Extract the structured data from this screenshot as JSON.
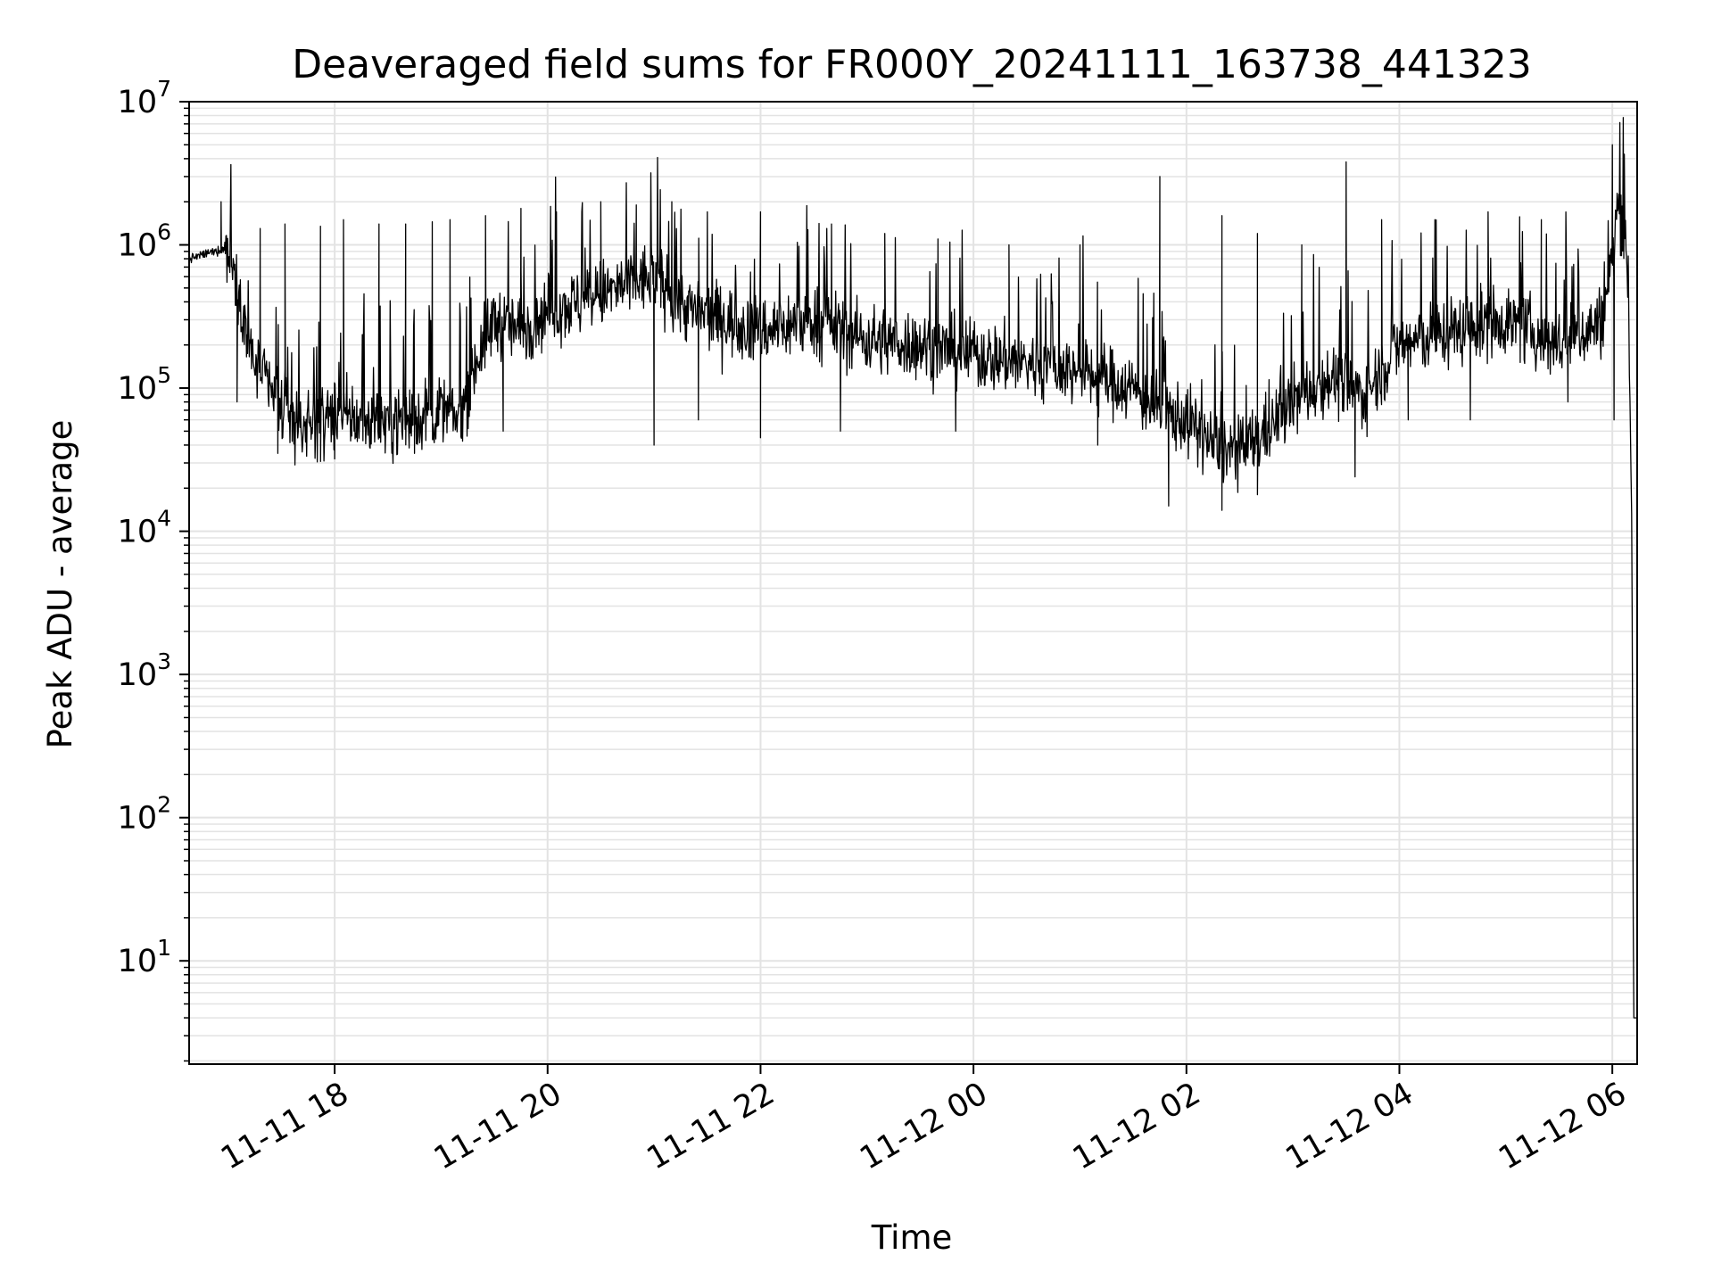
{
  "chart_data": {
    "type": "line",
    "title": "Deaveraged field sums for FR000Y_20241111_163738_441323",
    "xlabel": "Time",
    "ylabel": "Peak ADU - average",
    "y_scale": "log",
    "ylim": [
      1.9,
      10000000
    ],
    "xlim": [
      "2024-11-11 16:38",
      "2024-11-12 06:14"
    ],
    "grid": true,
    "legend": "none",
    "colors": {
      "line": "#000000",
      "grid": "#e3e3e3",
      "axes": "#000000"
    },
    "y_ticks": [
      {
        "base": "10",
        "exp": "1",
        "value": 10
      },
      {
        "base": "10",
        "exp": "2",
        "value": 100
      },
      {
        "base": "10",
        "exp": "3",
        "value": 1000
      },
      {
        "base": "10",
        "exp": "4",
        "value": 10000
      },
      {
        "base": "10",
        "exp": "5",
        "value": 100000
      },
      {
        "base": "10",
        "exp": "6",
        "value": 1000000
      },
      {
        "base": "10",
        "exp": "7",
        "value": 10000000
      }
    ],
    "x_ticks": [
      {
        "label": "11-11 18",
        "t": "2024-11-11 18:00"
      },
      {
        "label": "11-11 20",
        "t": "2024-11-11 20:00"
      },
      {
        "label": "11-11 22",
        "t": "2024-11-11 22:00"
      },
      {
        "label": "11-12 00",
        "t": "2024-11-12 00:00"
      },
      {
        "label": "11-12 02",
        "t": "2024-11-12 02:00"
      },
      {
        "label": "11-12 04",
        "t": "2024-11-12 04:00"
      },
      {
        "label": "11-12 06",
        "t": "2024-11-12 06:00"
      }
    ],
    "series": [
      {
        "x": [
          "2024-11-11 16:38",
          "2024-11-11 16:45",
          "2024-11-11 16:52",
          "2024-11-11 17:00",
          "2024-11-11 17:06",
          "2024-11-11 17:12",
          "2024-11-11 17:20",
          "2024-11-11 17:28",
          "2024-11-11 17:36",
          "2024-11-11 17:45",
          "2024-11-11 18:00",
          "2024-11-11 18:15",
          "2024-11-11 18:30",
          "2024-11-11 18:45",
          "2024-11-11 19:00",
          "2024-11-11 19:10",
          "2024-11-11 19:20",
          "2024-11-11 19:30",
          "2024-11-11 19:45",
          "2024-11-11 20:00",
          "2024-11-11 20:20",
          "2024-11-11 20:40",
          "2024-11-11 21:00",
          "2024-11-11 21:20",
          "2024-11-11 21:40",
          "2024-11-11 22:00",
          "2024-11-11 22:30",
          "2024-11-11 23:00",
          "2024-11-11 23:30",
          "2024-11-12 00:00",
          "2024-11-12 00:30",
          "2024-11-12 01:00",
          "2024-11-12 01:30",
          "2024-11-12 01:45",
          "2024-11-12 02:00",
          "2024-11-12 02:15",
          "2024-11-12 02:30",
          "2024-11-12 02:45",
          "2024-11-12 03:00",
          "2024-11-12 03:20",
          "2024-11-12 03:40",
          "2024-11-12 04:00",
          "2024-11-12 04:30",
          "2024-11-12 05:00",
          "2024-11-12 05:30",
          "2024-11-12 05:45",
          "2024-11-12 05:55",
          "2024-11-12 06:00",
          "2024-11-12 06:03",
          "2024-11-12 06:06",
          "2024-11-12 06:09",
          "2024-11-12 06:11",
          "2024-11-12 06:12",
          "2024-11-12 06:14"
        ],
        "y": [
          800000,
          850000,
          900000,
          950000,
          500000,
          180000,
          120000,
          75000,
          60000,
          55000,
          65000,
          60000,
          60000,
          62000,
          70000,
          60000,
          160000,
          300000,
          250000,
          350000,
          400000,
          500000,
          600000,
          350000,
          300000,
          250000,
          300000,
          220000,
          200000,
          170000,
          150000,
          130000,
          100000,
          70000,
          60000,
          40000,
          35000,
          50000,
          80000,
          120000,
          90000,
          200000,
          250000,
          300000,
          200000,
          250000,
          300000,
          800000,
          2000000,
          1500000,
          600000,
          10000,
          4,
          4
        ],
        "spikes": [
          {
            "t": "2024-11-11 16:56",
            "v": 2000000
          },
          {
            "t": "2024-11-11 17:18",
            "v": 1300000
          },
          {
            "t": "2024-11-11 17:32",
            "v": 1400000
          },
          {
            "t": "2024-11-11 17:52",
            "v": 1350000
          },
          {
            "t": "2024-11-11 18:05",
            "v": 1500000
          },
          {
            "t": "2024-11-11 18:25",
            "v": 1400000
          },
          {
            "t": "2024-11-11 18:40",
            "v": 1400000
          },
          {
            "t": "2024-11-11 18:55",
            "v": 1450000
          },
          {
            "t": "2024-11-11 19:05",
            "v": 1500000
          },
          {
            "t": "2024-11-11 19:25",
            "v": 1600000
          },
          {
            "t": "2024-11-11 19:45",
            "v": 1800000
          },
          {
            "t": "2024-11-11 20:05",
            "v": 1700000
          },
          {
            "t": "2024-11-11 20:30",
            "v": 2000000
          },
          {
            "t": "2024-11-11 20:50",
            "v": 1900000
          },
          {
            "t": "2024-11-11 21:10",
            "v": 2000000
          },
          {
            "t": "2024-11-11 21:30",
            "v": 1700000
          },
          {
            "t": "2024-11-11 22:00",
            "v": 1700000
          },
          {
            "t": "2024-11-11 22:40",
            "v": 1400000
          },
          {
            "t": "2024-11-11 23:10",
            "v": 1200000
          },
          {
            "t": "2024-11-11 23:40",
            "v": 1100000
          },
          {
            "t": "2024-11-12 00:20",
            "v": 1000000
          },
          {
            "t": "2024-11-12 01:00",
            "v": 1000000
          },
          {
            "t": "2024-11-12 01:45",
            "v": 3000000
          },
          {
            "t": "2024-11-12 02:20",
            "v": 1600000
          },
          {
            "t": "2024-11-12 02:40",
            "v": 1200000
          },
          {
            "t": "2024-11-12 03:05",
            "v": 1000000
          },
          {
            "t": "2024-11-12 03:30",
            "v": 3800000
          },
          {
            "t": "2024-11-12 03:50",
            "v": 1500000
          },
          {
            "t": "2024-11-12 04:20",
            "v": 1500000
          },
          {
            "t": "2024-11-12 04:50",
            "v": 1700000
          },
          {
            "t": "2024-11-12 05:20",
            "v": 1500000
          },
          {
            "t": "2024-11-12 06:00",
            "v": 5000000
          }
        ],
        "dips": [
          {
            "t": "2024-11-11 17:05",
            "v": 80000
          },
          {
            "t": "2024-11-11 17:28",
            "v": 35000
          },
          {
            "t": "2024-11-11 18:00",
            "v": 32000
          },
          {
            "t": "2024-11-11 18:45",
            "v": 35000
          },
          {
            "t": "2024-11-11 19:35",
            "v": 50000
          },
          {
            "t": "2024-11-11 21:00",
            "v": 40000
          },
          {
            "t": "2024-11-11 21:25",
            "v": 60000
          },
          {
            "t": "2024-11-11 22:00",
            "v": 45000
          },
          {
            "t": "2024-11-11 22:45",
            "v": 50000
          },
          {
            "t": "2024-11-11 23:50",
            "v": 50000
          },
          {
            "t": "2024-11-12 01:10",
            "v": 40000
          },
          {
            "t": "2024-11-12 01:50",
            "v": 15000
          },
          {
            "t": "2024-11-12 02:20",
            "v": 14000
          },
          {
            "t": "2024-11-12 02:40",
            "v": 18000
          },
          {
            "t": "2024-11-12 03:35",
            "v": 24000
          },
          {
            "t": "2024-11-12 04:05",
            "v": 60000
          },
          {
            "t": "2024-11-12 04:40",
            "v": 60000
          },
          {
            "t": "2024-11-12 05:35",
            "v": 80000
          },
          {
            "t": "2024-11-12 06:01",
            "v": 60000
          }
        ]
      }
    ]
  }
}
